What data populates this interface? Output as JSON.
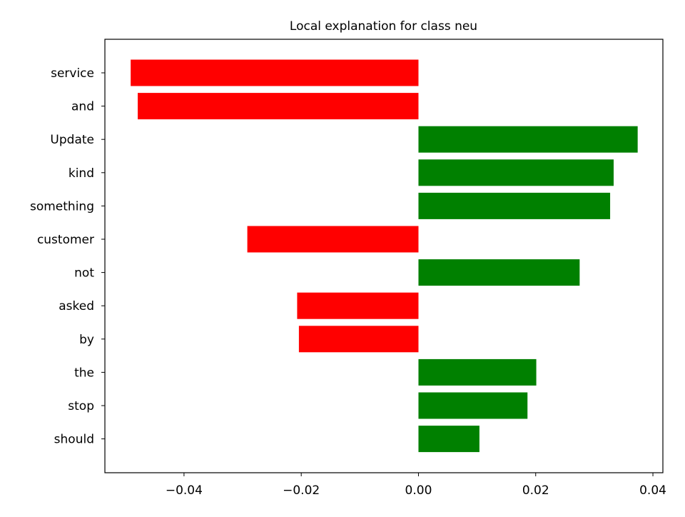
{
  "chart_data": {
    "type": "bar",
    "orientation": "horizontal",
    "title": "Local explanation for class neu",
    "xlabel": "",
    "ylabel": "",
    "categories": [
      "service",
      "and",
      "Update",
      "kind",
      "something",
      "customer",
      "not",
      "asked",
      "by",
      "the",
      "stop",
      "should"
    ],
    "values": [
      -0.0491,
      -0.0479,
      0.0374,
      0.0333,
      0.0327,
      -0.0292,
      0.0275,
      -0.0207,
      -0.0204,
      0.0201,
      0.0186,
      0.0104
    ],
    "xlim": [
      -0.0535,
      0.0417
    ],
    "xticks": [
      -0.04,
      -0.02,
      0.0,
      0.02,
      0.04
    ],
    "xtick_labels": [
      "−0.04",
      "−0.02",
      "0.00",
      "0.02",
      "0.04"
    ],
    "colors": {
      "positive": "#008000",
      "negative": "#ff0000"
    },
    "grid": false,
    "legend": "none"
  }
}
